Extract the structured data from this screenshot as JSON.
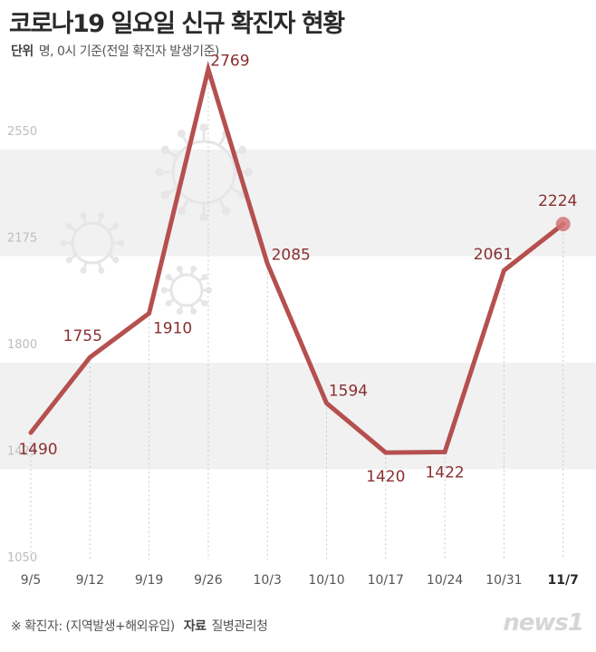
{
  "header": {
    "title": "코로나19 일요일 신규 확진자 현황",
    "unit_label": "단위",
    "unit_text": "명, 0시 기준(전일 확진자 발생기준)"
  },
  "footer": {
    "note": "※ 확진자: (지역발생+해외유입)",
    "source_label": "자료",
    "source_text": "질병관리청"
  },
  "logo": {
    "text": "news1"
  },
  "colors": {
    "line": "#b5504f",
    "label": "#8a2f30",
    "band": "#f1f1f1",
    "highlight": "#d27476"
  },
  "chart_data": {
    "type": "line",
    "categories": [
      "9/5",
      "9/12",
      "9/19",
      "9/26",
      "10/3",
      "10/10",
      "10/17",
      "10/24",
      "10/31",
      "11/7"
    ],
    "values": [
      1490,
      1755,
      1910,
      2769,
      2085,
      1594,
      1420,
      1422,
      2061,
      2224
    ],
    "y_ticks": [
      1050,
      1425,
      1800,
      2175,
      2550
    ],
    "ylim": [
      1050,
      2869
    ],
    "highlight_last": true,
    "grid": false,
    "legend": "none"
  }
}
